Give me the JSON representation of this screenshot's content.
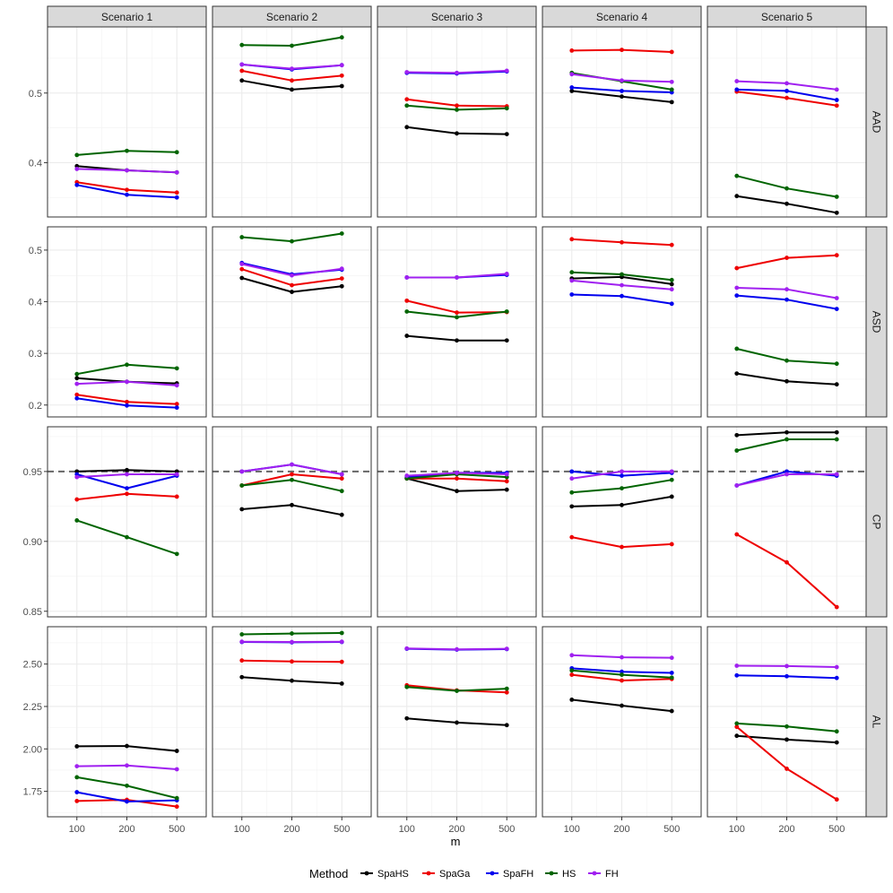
{
  "chart_data": {
    "type": "line",
    "xlabel": "m",
    "x": [
      "100",
      "200",
      "500"
    ],
    "columns": [
      "Scenario 1",
      "Scenario 2",
      "Scenario 3",
      "Scenario 4",
      "Scenario 5"
    ],
    "legend": {
      "title": "Method",
      "position": "bottom",
      "items": [
        {
          "name": "SpaHS",
          "color": "#000000"
        },
        {
          "name": "SpaGa",
          "color": "#ee0000"
        },
        {
          "name": "SpaFH",
          "color": "#0000ee"
        },
        {
          "name": "HS",
          "color": "#006400"
        },
        {
          "name": "FH",
          "color": "#a020f0"
        }
      ]
    },
    "rows": [
      {
        "label": "AAD",
        "ylim": [
          0.322,
          0.595
        ],
        "ticks": [
          0.4,
          0.5
        ],
        "tick_labels": [
          "0.4",
          "0.5"
        ],
        "panels": [
          {
            "SpaHS": [
              0.395,
              0.389,
              0.386
            ],
            "SpaGa": [
              0.372,
              0.361,
              0.357
            ],
            "SpaFH": [
              0.368,
              0.354,
              0.35
            ],
            "HS": [
              0.411,
              0.417,
              0.415
            ],
            "FH": [
              0.391,
              0.389,
              0.386
            ]
          },
          {
            "SpaHS": [
              0.518,
              0.505,
              0.51
            ],
            "SpaGa": [
              0.532,
              0.518,
              0.525
            ],
            "SpaFH": [
              0.541,
              0.534,
              0.54
            ],
            "HS": [
              0.569,
              0.568,
              0.58
            ],
            "FH": [
              0.541,
              0.535,
              0.54
            ]
          },
          {
            "SpaHS": [
              0.451,
              0.442,
              0.441
            ],
            "SpaGa": [
              0.491,
              0.482,
              0.481
            ],
            "SpaFH": [
              0.529,
              0.528,
              0.531
            ],
            "HS": [
              0.482,
              0.476,
              0.478
            ],
            "FH": [
              0.53,
              0.529,
              0.532
            ]
          },
          {
            "SpaHS": [
              0.503,
              0.495,
              0.487
            ],
            "SpaGa": [
              0.561,
              0.562,
              0.559
            ],
            "SpaFH": [
              0.508,
              0.503,
              0.501
            ],
            "HS": [
              0.529,
              0.517,
              0.505
            ],
            "FH": [
              0.527,
              0.518,
              0.516
            ]
          },
          {
            "SpaHS": [
              0.352,
              0.341,
              0.328
            ],
            "SpaGa": [
              0.502,
              0.493,
              0.482
            ],
            "SpaFH": [
              0.505,
              0.503,
              0.49
            ],
            "HS": [
              0.381,
              0.363,
              0.351
            ],
            "FH": [
              0.517,
              0.514,
              0.505
            ]
          }
        ]
      },
      {
        "label": "ASD",
        "ylim": [
          0.177,
          0.545
        ],
        "ticks": [
          0.2,
          0.3,
          0.4,
          0.5
        ],
        "tick_labels": [
          "0.2",
          "0.3",
          "0.4",
          "0.5"
        ],
        "panels": [
          {
            "SpaHS": [
              0.252,
              0.245,
              0.242
            ],
            "SpaGa": [
              0.22,
              0.206,
              0.202
            ],
            "SpaFH": [
              0.213,
              0.199,
              0.195
            ],
            "HS": [
              0.26,
              0.278,
              0.271
            ],
            "FH": [
              0.241,
              0.245,
              0.238
            ]
          },
          {
            "SpaHS": [
              0.446,
              0.419,
              0.43
            ],
            "SpaGa": [
              0.463,
              0.432,
              0.445
            ],
            "SpaFH": [
              0.475,
              0.453,
              0.462
            ],
            "HS": [
              0.525,
              0.517,
              0.532
            ],
            "FH": [
              0.473,
              0.451,
              0.464
            ]
          },
          {
            "SpaHS": [
              0.334,
              0.325,
              0.325
            ],
            "SpaGa": [
              0.402,
              0.379,
              0.38
            ],
            "SpaFH": [
              0.447,
              0.447,
              0.452
            ],
            "HS": [
              0.381,
              0.37,
              0.381
            ],
            "FH": [
              0.447,
              0.447,
              0.454
            ]
          },
          {
            "SpaHS": [
              0.445,
              0.448,
              0.434
            ],
            "SpaGa": [
              0.521,
              0.515,
              0.51
            ],
            "SpaFH": [
              0.414,
              0.411,
              0.396
            ],
            "HS": [
              0.457,
              0.453,
              0.442
            ],
            "FH": [
              0.441,
              0.432,
              0.424
            ]
          },
          {
            "SpaHS": [
              0.261,
              0.246,
              0.24
            ],
            "SpaGa": [
              0.465,
              0.485,
              0.49
            ],
            "SpaFH": [
              0.412,
              0.404,
              0.386
            ],
            "HS": [
              0.309,
              0.286,
              0.28
            ],
            "FH": [
              0.427,
              0.424,
              0.407
            ]
          }
        ]
      },
      {
        "label": "CP",
        "ylim": [
          0.846,
          0.982
        ],
        "ticks": [
          0.85,
          0.9,
          0.95
        ],
        "tick_labels": [
          "0.85",
          "0.90",
          "0.95"
        ],
        "reference_line": 0.95,
        "panels": [
          {
            "SpaHS": [
              0.95,
              0.951,
              0.95
            ],
            "SpaGa": [
              0.93,
              0.934,
              0.932
            ],
            "SpaFH": [
              0.948,
              0.938,
              0.947
            ],
            "HS": [
              0.915,
              0.903,
              0.891
            ],
            "FH": [
              0.946,
              0.948,
              0.948
            ]
          },
          {
            "SpaHS": [
              0.923,
              0.926,
              0.919
            ],
            "SpaGa": [
              0.94,
              0.948,
              0.945
            ],
            "SpaFH": [
              0.95,
              0.955,
              0.948
            ],
            "HS": [
              0.94,
              0.944,
              0.936
            ],
            "FH": [
              0.95,
              0.955,
              0.948
            ]
          },
          {
            "SpaHS": [
              0.945,
              0.936,
              0.937
            ],
            "SpaGa": [
              0.945,
              0.945,
              0.943
            ],
            "SpaFH": [
              0.946,
              0.949,
              0.949
            ],
            "HS": [
              0.945,
              0.948,
              0.946
            ],
            "FH": [
              0.947,
              0.949,
              0.948
            ]
          },
          {
            "SpaHS": [
              0.925,
              0.926,
              0.932
            ],
            "SpaGa": [
              0.903,
              0.896,
              0.898
            ],
            "SpaFH": [
              0.95,
              0.947,
              0.949
            ],
            "HS": [
              0.935,
              0.938,
              0.944
            ],
            "FH": [
              0.945,
              0.95,
              0.95
            ]
          },
          {
            "SpaHS": [
              0.976,
              0.978,
              0.978
            ],
            "SpaGa": [
              0.905,
              0.885,
              0.853
            ],
            "SpaFH": [
              0.94,
              0.95,
              0.947
            ],
            "HS": [
              0.965,
              0.973,
              0.973
            ],
            "FH": [
              0.94,
              0.948,
              0.948
            ]
          }
        ]
      },
      {
        "label": "AL",
        "ylim": [
          1.6,
          2.72
        ],
        "ticks": [
          1.75,
          2.0,
          2.25,
          2.5
        ],
        "tick_labels": [
          "1.75",
          "2.00",
          "2.25",
          "2.50"
        ],
        "panels": [
          {
            "SpaHS": [
              2.015,
              2.017,
              1.988
            ],
            "SpaGa": [
              1.693,
              1.7,
              1.66
            ],
            "SpaFH": [
              1.745,
              1.69,
              1.697
            ],
            "HS": [
              1.833,
              1.783,
              1.71
            ],
            "FH": [
              1.898,
              1.902,
              1.88
            ]
          },
          {
            "SpaHS": [
              2.423,
              2.402,
              2.385
            ],
            "SpaGa": [
              2.521,
              2.515,
              2.513
            ],
            "SpaFH": [
              2.63,
              2.628,
              2.63
            ],
            "HS": [
              2.675,
              2.68,
              2.683
            ],
            "FH": [
              2.632,
              2.63,
              2.632
            ]
          },
          {
            "SpaHS": [
              2.18,
              2.155,
              2.14
            ],
            "SpaGa": [
              2.375,
              2.345,
              2.333
            ],
            "SpaFH": [
              2.59,
              2.585,
              2.588
            ],
            "HS": [
              2.365,
              2.342,
              2.355
            ],
            "FH": [
              2.592,
              2.587,
              2.59
            ]
          },
          {
            "SpaHS": [
              2.29,
              2.255,
              2.223
            ],
            "SpaGa": [
              2.437,
              2.403,
              2.412
            ],
            "SpaFH": [
              2.475,
              2.455,
              2.448
            ],
            "HS": [
              2.462,
              2.437,
              2.42
            ],
            "FH": [
              2.552,
              2.54,
              2.537
            ]
          },
          {
            "SpaHS": [
              2.077,
              2.055,
              2.038
            ],
            "SpaGa": [
              2.13,
              1.883,
              1.702
            ],
            "SpaFH": [
              2.433,
              2.428,
              2.418
            ],
            "HS": [
              2.15,
              2.132,
              2.103
            ],
            "FH": [
              2.49,
              2.488,
              2.482
            ]
          }
        ]
      }
    ]
  }
}
